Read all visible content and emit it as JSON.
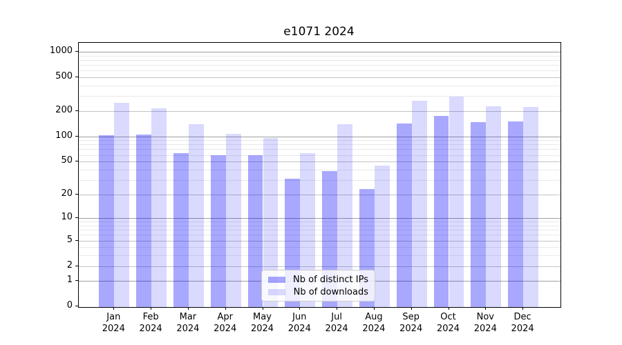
{
  "title": "e1071 2024",
  "chart_data": {
    "type": "bar",
    "title": "e1071 2024",
    "categories": [
      "Jan 2024",
      "Feb 2024",
      "Mar 2024",
      "Apr 2024",
      "May 2024",
      "Jun 2024",
      "Jul 2024",
      "Aug 2024",
      "Sep 2024",
      "Oct 2024",
      "Nov 2024",
      "Dec 2024"
    ],
    "series": [
      {
        "name": "Nb of distinct IPs",
        "color": "#A9A9F7",
        "fill": "rgba(0,0,255,0.34)",
        "values": [
          103,
          106,
          63,
          60,
          60,
          31,
          38,
          23,
          143,
          176,
          148,
          151
        ]
      },
      {
        "name": "Nb of downloads",
        "color": "#DBDBFB",
        "fill": "rgba(0,0,255,0.145)",
        "values": [
          248,
          216,
          139,
          108,
          95,
          63,
          140,
          45,
          264,
          295,
          227,
          222
        ]
      }
    ],
    "xlabel": "",
    "ylabel": "",
    "yscale": "log1p",
    "ylim": [
      0,
      1200
    ],
    "yticks": [
      0,
      1,
      2,
      5,
      10,
      20,
      50,
      100,
      200,
      500,
      1000
    ],
    "minor_yticks": [
      3,
      4,
      6,
      7,
      8,
      9,
      30,
      40,
      60,
      70,
      80,
      90,
      300,
      400,
      600,
      700,
      800,
      900
    ],
    "grid": true,
    "grid_major_color": "#c3c3c3",
    "grid_minor_color": "#e9e9e9",
    "legend_position": "bottom-center",
    "frame_color": "#000000",
    "background_color": "#ffffff"
  },
  "legend": {
    "items": [
      {
        "label": "Nb of distinct IPs"
      },
      {
        "label": "Nb of downloads"
      }
    ]
  }
}
